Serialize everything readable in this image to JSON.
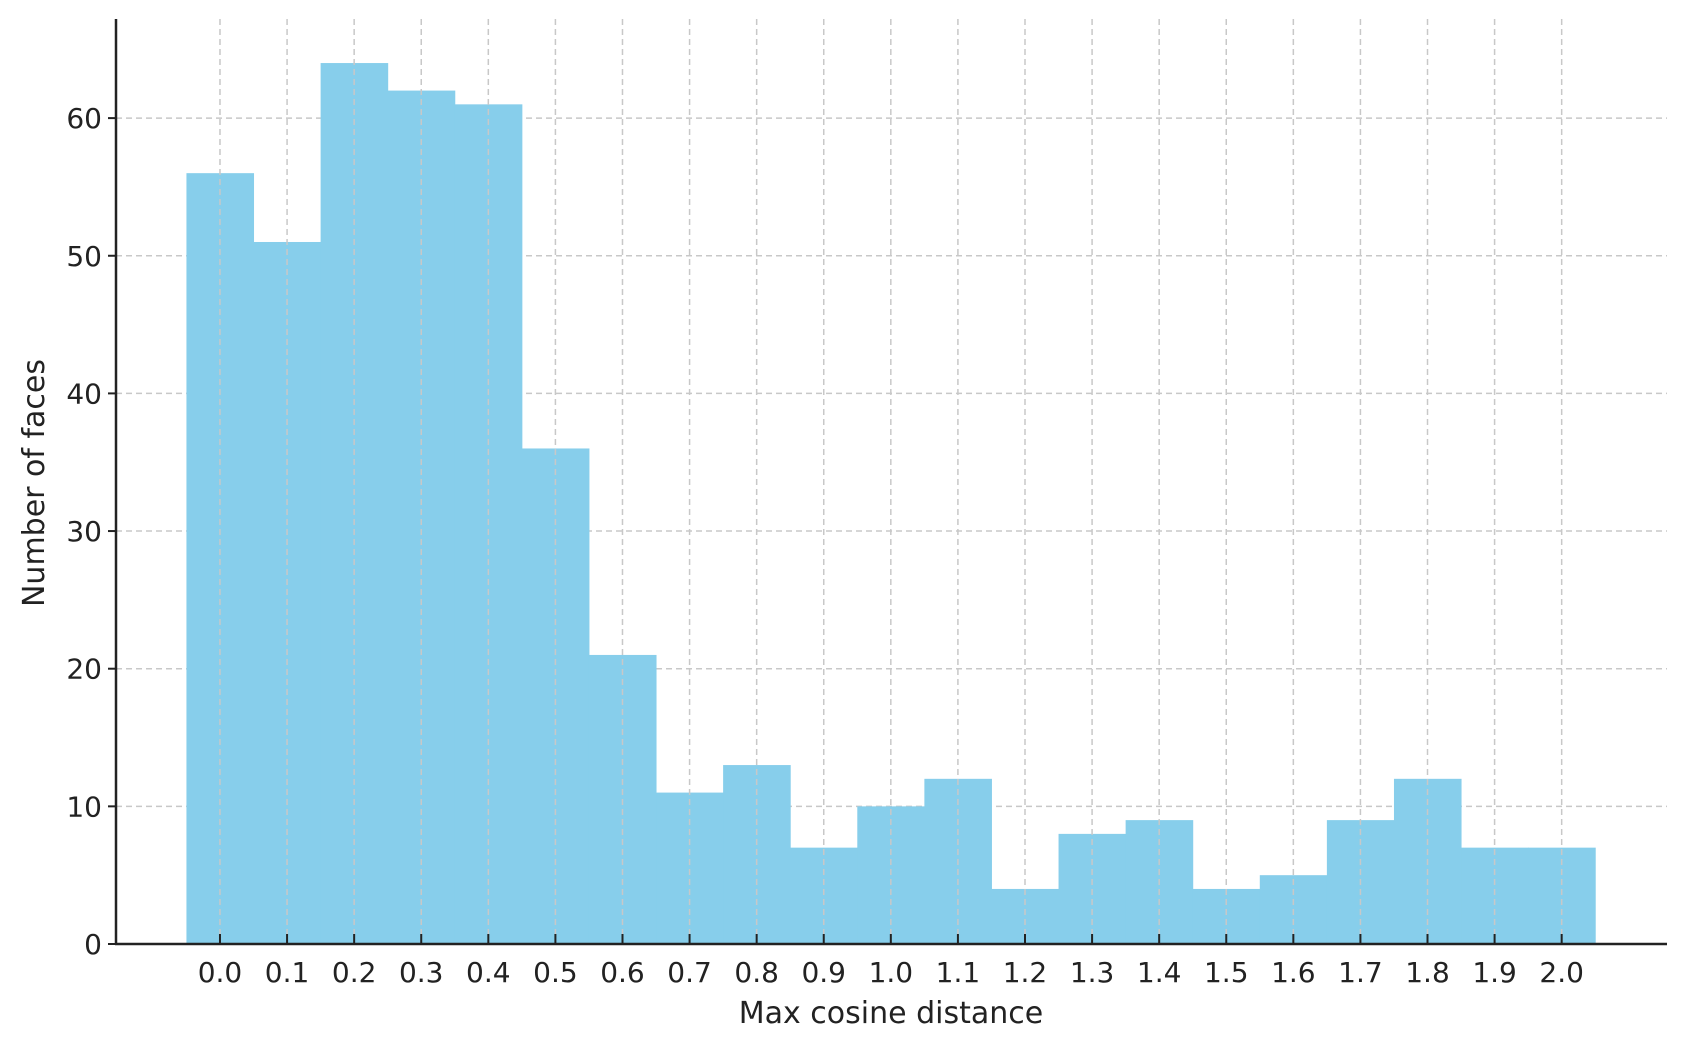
{
  "chart_data": {
    "type": "bar",
    "title": "",
    "xlabel": "Max cosine distance",
    "ylabel": "Number of faces",
    "bin_width": 0.1,
    "x": [
      0.0,
      0.1,
      0.2,
      0.3,
      0.4,
      0.5,
      0.6,
      0.7,
      0.8,
      0.9,
      1.0,
      1.1,
      1.2,
      1.3,
      1.4,
      1.5,
      1.6,
      1.7,
      1.8,
      1.9,
      2.0
    ],
    "values": [
      56,
      51,
      64,
      62,
      61,
      36,
      21,
      11,
      13,
      7,
      10,
      12,
      4,
      8,
      9,
      4,
      5,
      9,
      12,
      7,
      7
    ],
    "xticks": [
      "0.0",
      "0.1",
      "0.2",
      "0.3",
      "0.4",
      "0.5",
      "0.6",
      "0.7",
      "0.8",
      "0.9",
      "1.0",
      "1.1",
      "1.2",
      "1.3",
      "1.4",
      "1.5",
      "1.6",
      "1.7",
      "1.8",
      "1.9",
      "2.0"
    ],
    "yticks": [
      "0",
      "10",
      "20",
      "30",
      "40",
      "50",
      "60"
    ],
    "xlim": [
      -0.155,
      2.157
    ],
    "ylim": [
      0,
      67.2
    ],
    "grid": true,
    "bar_color": "#87CEEB",
    "grid_color": "#c8c8c8"
  }
}
